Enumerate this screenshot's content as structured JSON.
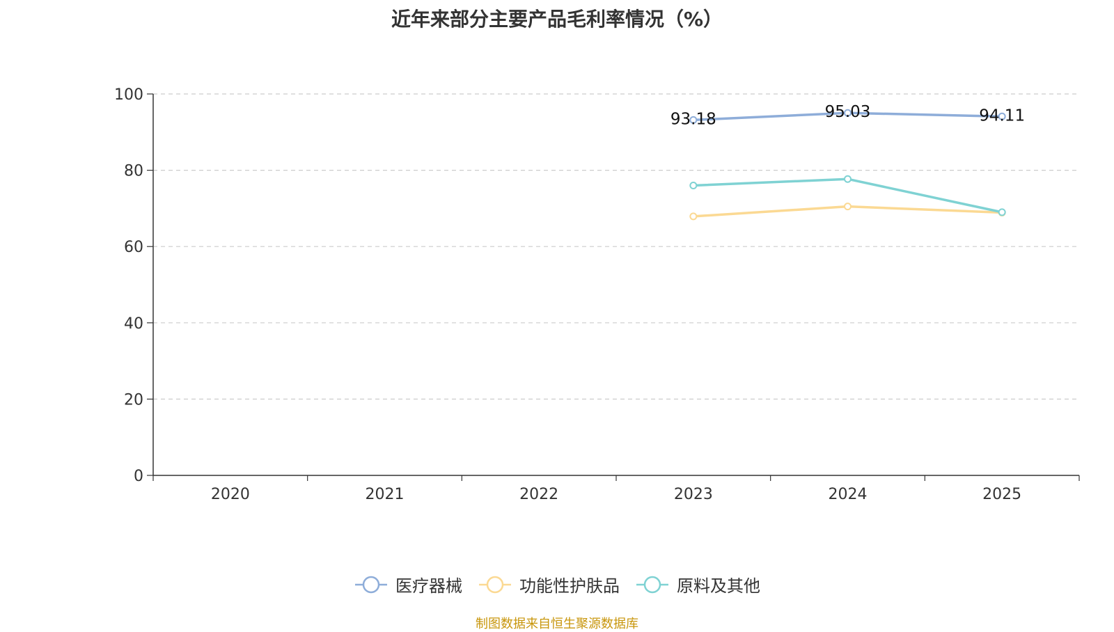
{
  "chart_data": {
    "type": "line",
    "title": "近年来部分主要产品毛利率情况（%）",
    "xlabel": "",
    "ylabel": "",
    "categories": [
      "2020",
      "2021",
      "2022",
      "2023",
      "2024",
      "2025"
    ],
    "ylim": [
      0,
      100
    ],
    "yticks": [
      0,
      20,
      40,
      60,
      80,
      100
    ],
    "grid": true,
    "legend_position": "bottom",
    "series": [
      {
        "name": "医疗器械",
        "color": "#8eadd9",
        "values": [
          null,
          null,
          null,
          93.18,
          95.03,
          94.11
        ],
        "labels": [
          "",
          "",
          "",
          "93.18",
          "95.03",
          "94.11"
        ]
      },
      {
        "name": "功能性护肤品",
        "color": "#fbd993",
        "values": [
          null,
          null,
          null,
          67.9,
          70.5,
          68.9
        ],
        "labels": [
          "",
          "",
          "",
          "",
          "",
          ""
        ]
      },
      {
        "name": "原料及其他",
        "color": "#7fd2d3",
        "values": [
          null,
          null,
          null,
          76.0,
          77.7,
          69.0
        ],
        "labels": [
          "",
          "",
          "",
          "",
          "",
          ""
        ]
      }
    ]
  },
  "source_note": "制图数据来自恒生聚源数据库"
}
